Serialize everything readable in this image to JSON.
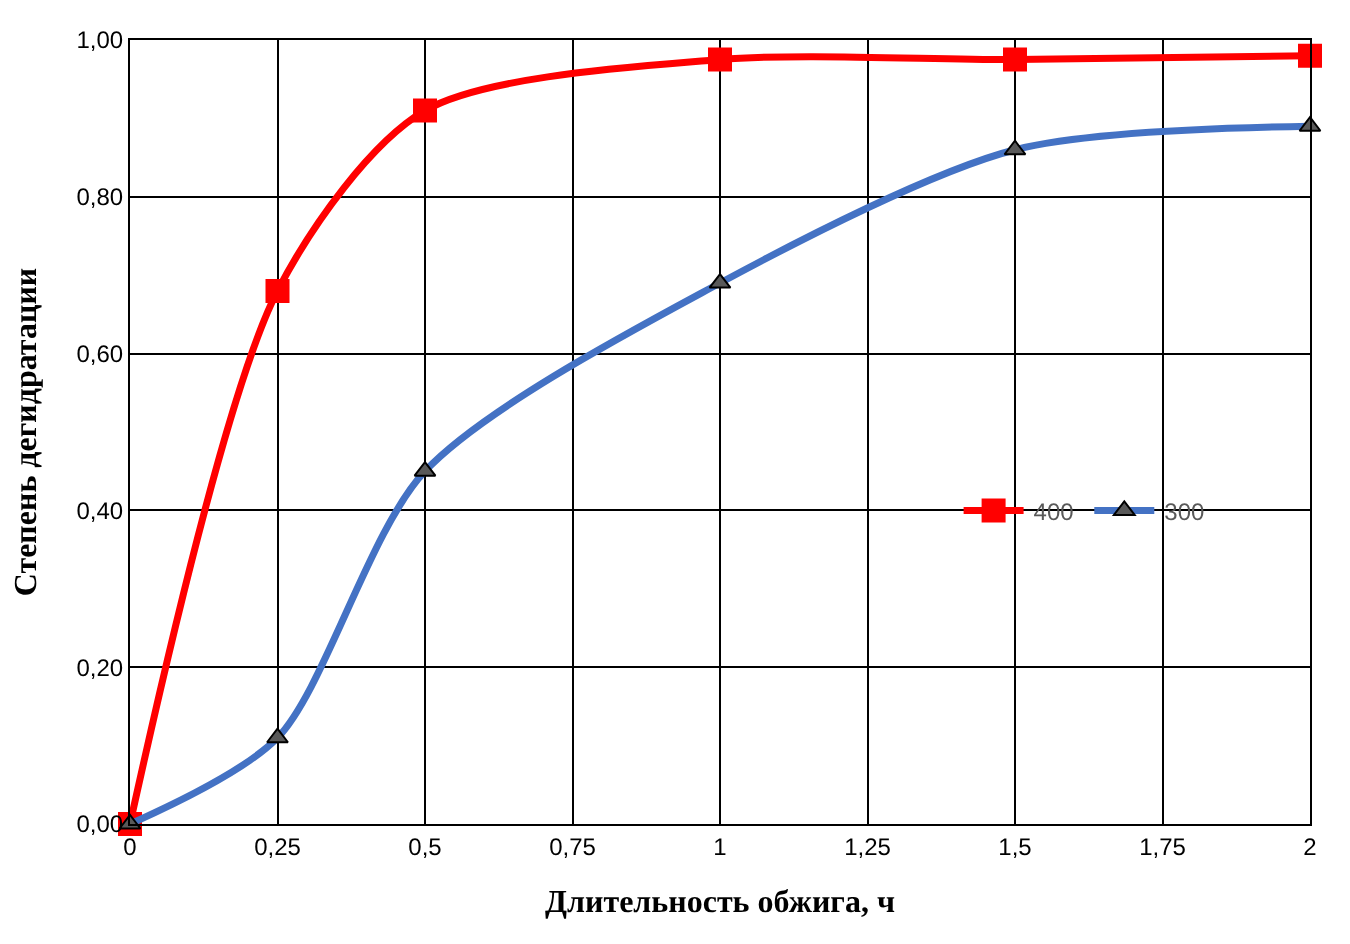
{
  "chart_data": {
    "type": "line",
    "xlabel": "Длительность обжига, ч",
    "ylabel": "Степень дегидратации",
    "x": [
      0,
      0.25,
      0.5,
      1,
      1.5,
      2
    ],
    "series": [
      {
        "name": "400",
        "color": "#ff0000",
        "marker": "square",
        "values": [
          0,
          0.68,
          0.91,
          0.975,
          0.975,
          0.98
        ]
      },
      {
        "name": "300",
        "color": "#4472c4",
        "marker": "triangle",
        "values": [
          0,
          0.11,
          0.45,
          0.69,
          0.86,
          0.89
        ]
      }
    ],
    "xlim": [
      0,
      2
    ],
    "xticks": [
      0,
      {
        "value": 0.25,
        "label": "0,25"
      },
      {
        "value": 0.5,
        "label": "0,5"
      },
      {
        "value": 0.75,
        "label": "0,75"
      },
      1,
      {
        "value": 1.25,
        "label": "1,25"
      },
      {
        "value": 1.5,
        "label": "1,5"
      },
      {
        "value": 1.75,
        "label": "1,75"
      },
      2
    ],
    "ylim": [
      0,
      1
    ],
    "yticks": [
      {
        "value": 0,
        "label": "0,00"
      },
      {
        "value": 0.2,
        "label": "0,20"
      },
      {
        "value": 0.4,
        "label": "0,40"
      },
      {
        "value": 0.6,
        "label": "0,60"
      },
      {
        "value": 0.8,
        "label": "0,80"
      },
      {
        "value": 1,
        "label": "1,00"
      }
    ],
    "grid": true,
    "legend": "center right",
    "line_style": "solid"
  }
}
